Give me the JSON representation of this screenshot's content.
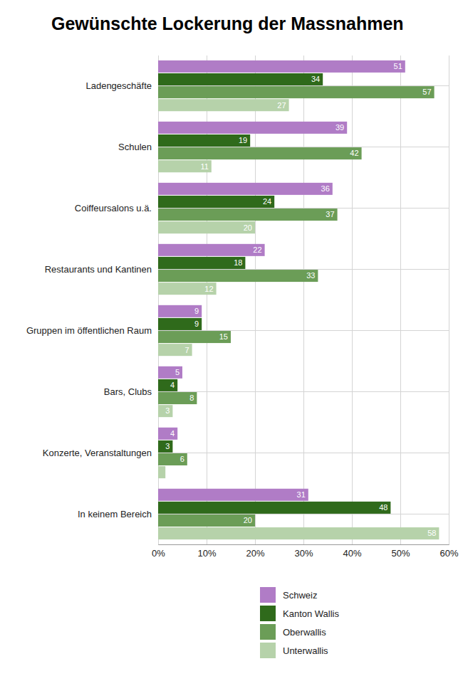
{
  "chart_data": {
    "type": "bar",
    "title": "Gewünschte Lockerung der Massnahmen",
    "orientation": "horizontal",
    "categories": [
      "Ladengeschäfte",
      "Schulen",
      "Coiffeursalons u.ä.",
      "Restaurants und Kantinen",
      "Gruppen im öffentlichen Raum",
      "Bars, Clubs",
      "Konzerte, Veranstaltungen",
      "In keinem Bereich"
    ],
    "series": [
      {
        "name": "Schweiz",
        "color": "#b07cc6",
        "values": [
          51,
          39,
          36,
          22,
          9,
          5,
          4,
          31
        ]
      },
      {
        "name": "Kanton Wallis",
        "color": "#2f6a1b",
        "values": [
          34,
          19,
          24,
          18,
          9,
          4,
          3,
          48
        ]
      },
      {
        "name": "Oberwallis",
        "color": "#6b9d57",
        "values": [
          57,
          42,
          37,
          33,
          15,
          8,
          6,
          20
        ]
      },
      {
        "name": "Unterwallis",
        "color": "#b6d2aa",
        "values": [
          27,
          11,
          20,
          12,
          7,
          3,
          1.5,
          58
        ],
        "value_labels": [
          "27",
          "11",
          "20",
          "12",
          "7",
          "3",
          null,
          "58"
        ]
      }
    ],
    "xlim": [
      0,
      60
    ],
    "xticks": [
      {
        "value": 0,
        "label": "0%"
      },
      {
        "value": 10,
        "label": "10%"
      },
      {
        "value": 20,
        "label": "20%"
      },
      {
        "value": 30,
        "label": "30%"
      },
      {
        "value": 40,
        "label": "40%"
      },
      {
        "value": 50,
        "label": "50%"
      },
      {
        "value": 60,
        "label": "60%"
      }
    ],
    "grid": true,
    "data_labels": true,
    "legend": "bottom"
  }
}
